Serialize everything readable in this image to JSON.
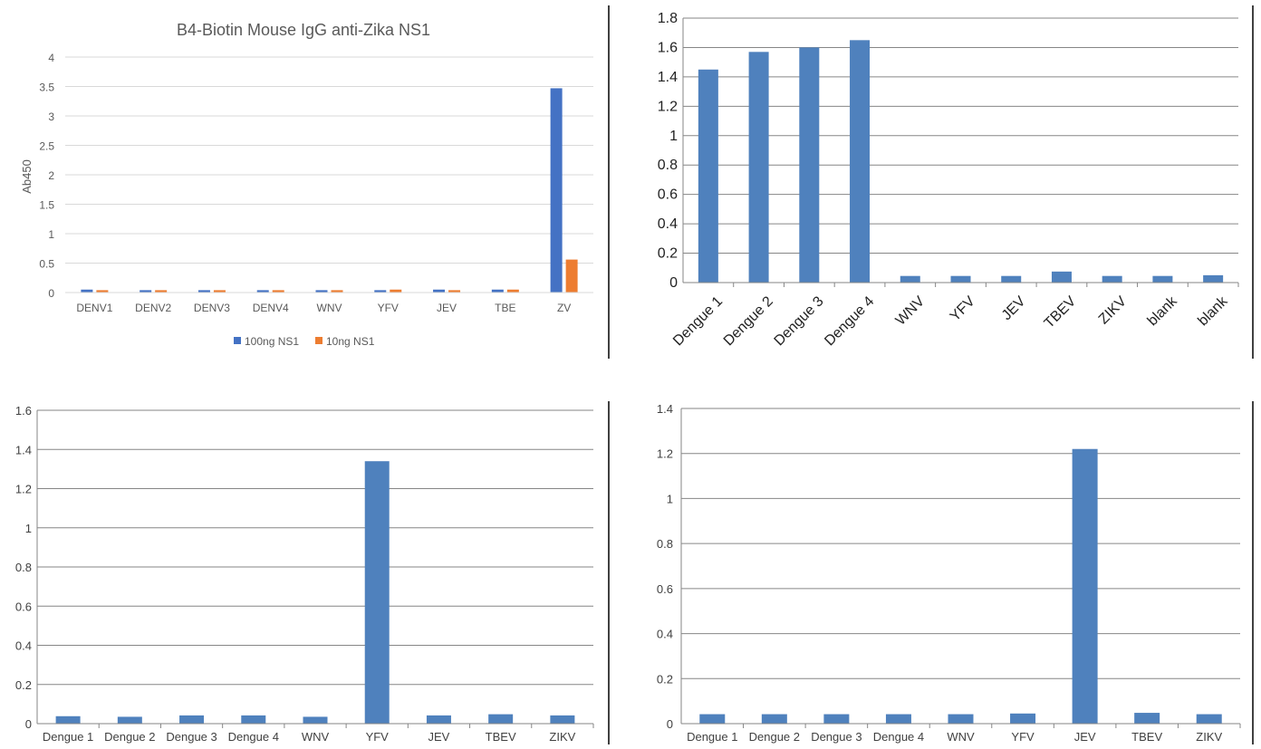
{
  "colors": {
    "blue": "#4472c4",
    "orange": "#ed7d31",
    "bar_plain": "#4f81bd",
    "grid": "#d9d9d9",
    "grid_dark": "#868686",
    "divider": "#000000"
  },
  "chart_data": [
    {
      "type": "bar",
      "title": "B4-Biotin Mouse IgG anti-Zika NS1",
      "xlabel": "",
      "ylabel": "Ab450",
      "ylim": [
        0,
        4
      ],
      "yticks": [
        "0",
        "0.5",
        "1",
        "1.5",
        "2",
        "2.5",
        "3",
        "3.5",
        "4"
      ],
      "categories": [
        "DENV1",
        "DENV2",
        "DENV3",
        "DENV4",
        "WNV",
        "YFV",
        "JEV",
        "TBE",
        "ZV"
      ],
      "series": [
        {
          "name": "100ng NS1",
          "color": "#4472c4",
          "values": [
            0.05,
            0.04,
            0.04,
            0.04,
            0.04,
            0.04,
            0.05,
            0.05,
            3.47
          ]
        },
        {
          "name": "10ng NS1",
          "color": "#ed7d31",
          "values": [
            0.04,
            0.04,
            0.04,
            0.04,
            0.04,
            0.05,
            0.04,
            0.05,
            0.56
          ]
        }
      ],
      "legend": "bottom",
      "grid": true
    },
    {
      "type": "bar",
      "title": "",
      "xlabel": "",
      "ylabel": "",
      "ylim": [
        0,
        1.8
      ],
      "yticks": [
        "0",
        "0.2",
        "0.4",
        "0.6",
        "0.8",
        "1",
        "1.2",
        "1.4",
        "1.6",
        "1.8"
      ],
      "categories": [
        "Dengue 1",
        "Dengue 2",
        "Dengue 3",
        "Dengue 4",
        "WNV",
        "YFV",
        "JEV",
        "TBEV",
        "ZIKV",
        "blank",
        "blank"
      ],
      "values": [
        1.45,
        1.57,
        1.6,
        1.65,
        0.045,
        0.045,
        0.045,
        0.075,
        0.045,
        0.045,
        0.05
      ],
      "grid": true
    },
    {
      "type": "bar",
      "title": "",
      "xlabel": "",
      "ylabel": "",
      "ylim": [
        0,
        1.6
      ],
      "yticks": [
        "0",
        "0.2",
        "0.4",
        "0.6",
        "0.8",
        "1",
        "1.2",
        "1.4",
        "1.6"
      ],
      "categories": [
        "Dengue 1",
        "Dengue 2",
        "Dengue 3",
        "Dengue 4",
        "WNV",
        "YFV",
        "JEV",
        "TBEV",
        "ZIKV"
      ],
      "values": [
        0.038,
        0.035,
        0.042,
        0.042,
        0.035,
        1.34,
        0.042,
        0.048,
        0.042
      ],
      "grid": true
    },
    {
      "type": "bar",
      "title": "",
      "xlabel": "",
      "ylabel": "",
      "ylim": [
        0,
        1.4
      ],
      "yticks": [
        "0",
        "0.2",
        "0.4",
        "0.6",
        "0.8",
        "1",
        "1.2",
        "1.4"
      ],
      "categories": [
        "Dengue 1",
        "Dengue 2",
        "Dengue 3",
        "Dengue 4",
        "WNV",
        "YFV",
        "JEV",
        "TBEV",
        "ZIKV"
      ],
      "values": [
        0.042,
        0.042,
        0.042,
        0.042,
        0.042,
        0.045,
        1.22,
        0.048,
        0.042
      ],
      "grid": true
    }
  ]
}
